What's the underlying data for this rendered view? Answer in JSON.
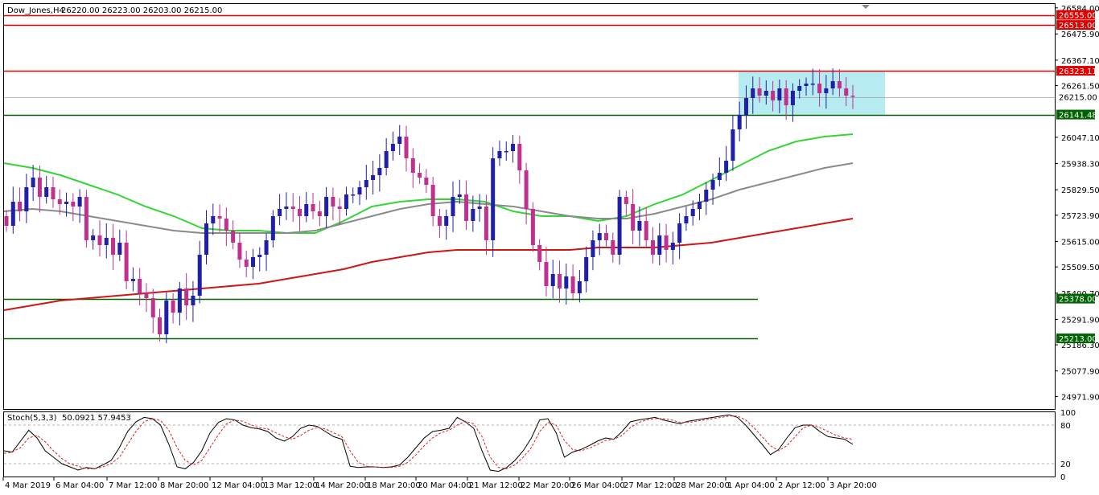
{
  "header": {
    "symbol": "Dow_Jones,H4",
    "ohlc": "26220.00 26223.00 26203.00 26215.00"
  },
  "stoch_header": {
    "label": "Stoch(5,3,3)",
    "values": "50.0921 57.9453"
  },
  "colors": {
    "background": "#ffffff",
    "bull": "#1f1fa8",
    "bear": "#c0308f",
    "ma_fast": "#33d633",
    "ma_mid": "#8a8a8a",
    "ma_slow": "#d01515",
    "resistance": "#e00000",
    "support": "#006400",
    "zone": "#a8e8ee"
  },
  "chart_data": [
    {
      "type": "candlestick",
      "title": "Dow_Jones,H4",
      "ylim": [
        24920,
        26600
      ],
      "y_ticks": [
        "26584.00",
        "26475.90",
        "26367.10",
        "26261.50",
        "26047.10",
        "25938.30",
        "25829.50",
        "25723.90",
        "25615.00",
        "25509.50",
        "25400.70",
        "25291.90",
        "25186.30",
        "25077.90",
        "24971.90"
      ],
      "x_tick_labels": [
        "4 Mar 2019",
        "6 Mar 04:00",
        "7 Mar 12:00",
        "8 Mar 20:00",
        "12 Mar 04:00",
        "13 Mar 12:00",
        "14 Mar 20:00",
        "18 Mar 20:00",
        "20 Mar 04:00",
        "21 Mar 12:00",
        "22 Mar 20:00",
        "26 Mar 04:00",
        "27 Mar 12:00",
        "28 Mar 20:00",
        "1 Apr 04:00",
        "2 Apr 12:00",
        "3 Apr 20:00"
      ],
      "candles_close": [
        25680,
        25780,
        25740,
        25840,
        25880,
        25800,
        25840,
        25790,
        25770,
        25780,
        25760,
        25800,
        25620,
        25640,
        25600,
        25630,
        25560,
        25610,
        25450,
        25460,
        25400,
        25380,
        25300,
        25230,
        25370,
        25320,
        25420,
        25350,
        25390,
        25560,
        25690,
        25720,
        25710,
        25660,
        25610,
        25540,
        25510,
        25550,
        25560,
        25620,
        25720,
        25750,
        25760,
        25750,
        25720,
        25770,
        25740,
        25720,
        25800,
        25760,
        25750,
        25810,
        25810,
        25840,
        25870,
        25890,
        25920,
        25990,
        26020,
        26050,
        25960,
        25900,
        25880,
        25850,
        25720,
        25680,
        25720,
        25800,
        25810,
        25700,
        25750,
        25760,
        25620,
        25960,
        25990,
        25990,
        26020,
        25910,
        25750,
        25600,
        25530,
        25430,
        25480,
        25420,
        25470,
        25400,
        25450,
        25550,
        25620,
        25650,
        25620,
        25560,
        25800,
        25770,
        25660,
        25700,
        25620,
        25560,
        25640,
        25580,
        25610,
        25690,
        25720,
        25750,
        25780,
        25830,
        25870,
        25900,
        25950,
        26080,
        26140,
        26210,
        26250,
        26220,
        26240,
        26200,
        26250,
        26180,
        26240,
        26260,
        26270,
        26270,
        26230,
        26250,
        26280,
        26250,
        26220,
        26215
      ],
      "horizontal_levels": [
        {
          "value": 26555.0,
          "label": "26555.00",
          "style": "resistance"
        },
        {
          "value": 26513.0,
          "label": "26513.00",
          "style": "resistance"
        },
        {
          "value": 26323.11,
          "label": "26323.11",
          "style": "resistance"
        },
        {
          "value": 26141.48,
          "label": "26141.48",
          "style": "support"
        },
        {
          "value": 25378.0,
          "label": "25378.00",
          "style": "support"
        },
        {
          "value": 25213.0,
          "label": "25213.00",
          "style": "support"
        }
      ],
      "current_price": {
        "value": 26215.0,
        "label": "26215.00"
      },
      "consolidation_zone": {
        "y_top": 26323.11,
        "y_bottom": 26141.48
      },
      "series": [
        {
          "type": "ma",
          "color_key": "ma_fast",
          "values": [
            25940,
            25920,
            25890,
            25850,
            25810,
            25760,
            25720,
            25670,
            25660,
            25660,
            25650,
            25650,
            25700,
            25760,
            25780,
            25790,
            25790,
            25780,
            25740,
            25720,
            25720,
            25700,
            25720,
            25770,
            25810,
            25870,
            25930,
            25990,
            26030,
            26050,
            26060
          ]
        },
        {
          "type": "ma",
          "color_key": "ma_mid",
          "values": [
            25740,
            25750,
            25740,
            25720,
            25700,
            25680,
            25660,
            25650,
            25650,
            25650,
            25650,
            25660,
            25690,
            25720,
            25750,
            25770,
            25780,
            25770,
            25760,
            25740,
            25720,
            25710,
            25710,
            25730,
            25760,
            25790,
            25830,
            25860,
            25890,
            25920,
            25940
          ]
        },
        {
          "type": "ma",
          "color_key": "ma_slow",
          "values": [
            25330,
            25350,
            25370,
            25380,
            25390,
            25400,
            25410,
            25420,
            25430,
            25440,
            25460,
            25480,
            25500,
            25530,
            25550,
            25570,
            25580,
            25580,
            25580,
            25580,
            25580,
            25590,
            25590,
            25590,
            25600,
            25610,
            25630,
            25650,
            25670,
            25690,
            25710
          ]
        }
      ]
    },
    {
      "type": "line",
      "title": "Stoch(5,3,3) 50.0921 57.9453",
      "ylim": [
        0,
        100
      ],
      "y_ticks": [
        "100",
        "80",
        "20",
        "0"
      ],
      "levels": [
        80,
        20
      ],
      "series": [
        {
          "name": "%K",
          "values": [
            40,
            38,
            55,
            72,
            60,
            40,
            30,
            20,
            15,
            10,
            14,
            12,
            18,
            25,
            45,
            70,
            85,
            92,
            90,
            80,
            50,
            15,
            12,
            22,
            40,
            68,
            84,
            90,
            88,
            80,
            76,
            74,
            70,
            60,
            55,
            62,
            75,
            80,
            78,
            70,
            62,
            58,
            16,
            14,
            15,
            15,
            14,
            15,
            18,
            30,
            45,
            60,
            70,
            72,
            75,
            92,
            85,
            75,
            40,
            10,
            8,
            14,
            25,
            40,
            60,
            88,
            90,
            68,
            30,
            38,
            42,
            48,
            55,
            60,
            58,
            70,
            85,
            88,
            90,
            92,
            88,
            85,
            82,
            86,
            88,
            90,
            92,
            94,
            96,
            92,
            80,
            65,
            50,
            34,
            42,
            60,
            76,
            80,
            80,
            70,
            62,
            60,
            58,
            50
          ]
        },
        {
          "name": "%D",
          "values": [
            36,
            38,
            45,
            60,
            64,
            54,
            40,
            28,
            20,
            16,
            12,
            12,
            15,
            20,
            30,
            50,
            70,
            85,
            90,
            87,
            72,
            45,
            25,
            18,
            25,
            45,
            65,
            82,
            88,
            86,
            80,
            76,
            74,
            68,
            62,
            58,
            64,
            72,
            76,
            74,
            68,
            62,
            40,
            22,
            16,
            15,
            14,
            14,
            16,
            22,
            34,
            48,
            60,
            68,
            72,
            80,
            86,
            82,
            62,
            30,
            14,
            12,
            18,
            30,
            45,
            70,
            84,
            80,
            56,
            42,
            40,
            44,
            50,
            56,
            58,
            64,
            76,
            84,
            88,
            90,
            90,
            88,
            84,
            84,
            86,
            88,
            90,
            92,
            94,
            94,
            88,
            76,
            62,
            48,
            40,
            48,
            62,
            76,
            80,
            76,
            70,
            64,
            60,
            58
          ]
        }
      ]
    }
  ]
}
